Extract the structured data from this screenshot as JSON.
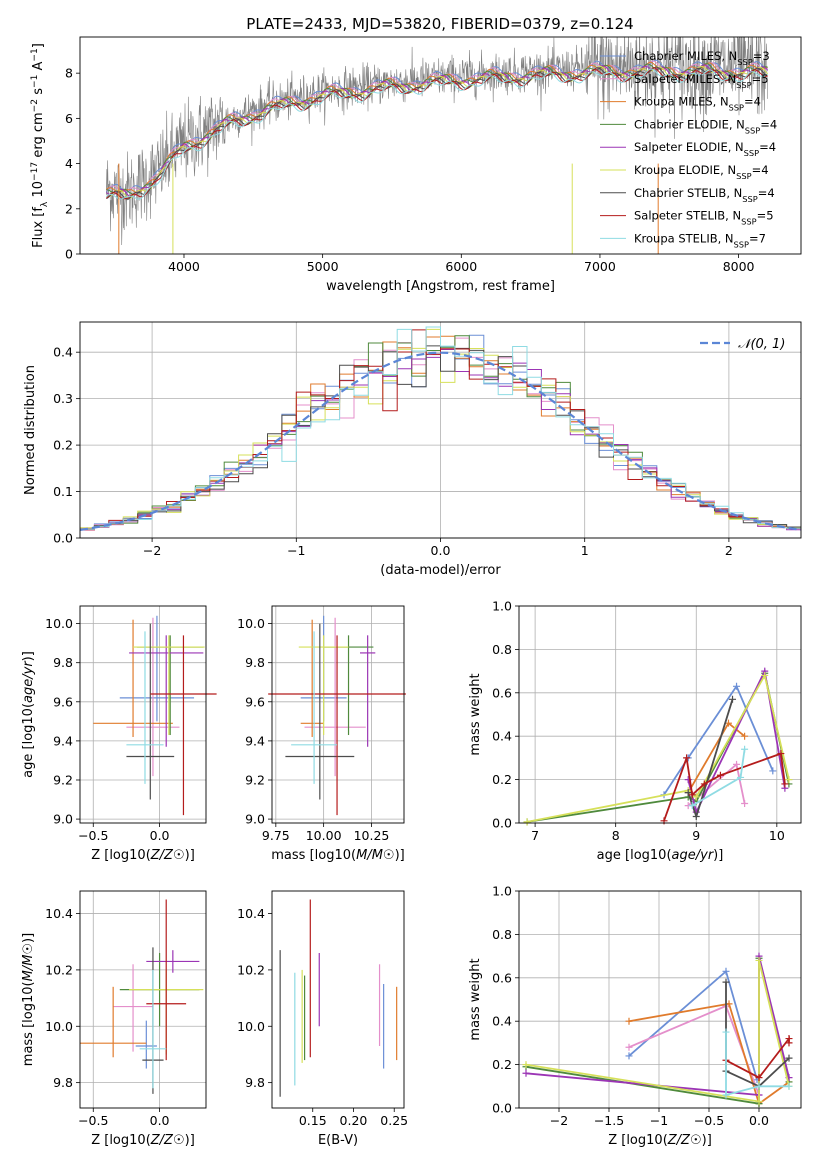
{
  "figure": {
    "title": "PLATE=2433, MJD=53820, FIBERID=0379, z=0.124"
  },
  "series_styles": [
    {
      "name": "Chabrier MILES",
      "nssp": "3",
      "color": "#6b8fd6"
    },
    {
      "name": "Salpeter MILES",
      "nssp": "5",
      "color": "#e48fcb"
    },
    {
      "name": "Kroupa MILES",
      "nssp": "4",
      "color": "#e07b2c"
    },
    {
      "name": "Chabrier ELODIE",
      "nssp": "4",
      "color": "#4f8a3c"
    },
    {
      "name": "Salpeter ELODIE",
      "nssp": "4",
      "color": "#9b35b5"
    },
    {
      "name": "Kroupa ELODIE",
      "nssp": "4",
      "color": "#d6e05a"
    },
    {
      "name": "Chabrier STELIB",
      "nssp": "4",
      "color": "#4d4d4d"
    },
    {
      "name": "Salpeter STELIB",
      "nssp": "5",
      "color": "#b41c1c"
    },
    {
      "name": "Kroupa STELIB",
      "nssp": "7",
      "color": "#8fdbe3"
    }
  ],
  "chart_data": [
    {
      "id": "spectrum",
      "type": "line",
      "xlabel": "wavelength [Angstrom, rest frame]",
      "ylabel": "Flux [f_λ 10^-17 erg cm^-2 s^-1 A^-1]",
      "xlim": [
        3250,
        8450
      ],
      "ylim": [
        0,
        9.6
      ],
      "xticks": [
        4000,
        5000,
        6000,
        7000,
        8000
      ],
      "yticks": [
        0,
        2,
        4,
        6,
        8
      ],
      "grid": false,
      "legend": "top-right",
      "data_color": "#808080",
      "continuum": {
        "x": [
          3440,
          3600,
          3800,
          4000,
          4300,
          4600,
          5000,
          5500,
          6000,
          6500,
          7000,
          7500,
          8000,
          8200
        ],
        "y": [
          2.9,
          2.7,
          3.6,
          4.9,
          5.9,
          6.6,
          7.2,
          7.6,
          7.9,
          8.1,
          8.25,
          8.3,
          8.25,
          8.2
        ]
      }
    },
    {
      "id": "residuals",
      "type": "bar",
      "xlabel": "(data-model)/error",
      "ylabel": "Normed distribution",
      "xlim": [
        -2.5,
        2.5
      ],
      "ylim": [
        0,
        0.465
      ],
      "xticks": [
        -2,
        -1,
        0,
        1,
        2
      ],
      "yticks": [
        0.0,
        0.1,
        0.2,
        0.3,
        0.4
      ],
      "grid": true,
      "legend": "top-right",
      "bin_width": 0.1,
      "gaussian_label": "𝒩(0, 1)",
      "gaussian_color": "#5b86d6"
    },
    {
      "id": "age-vs-Z",
      "type": "scatter",
      "xlabel": "Z [log10(Z/Z☉)]",
      "ylabel": "age  [log10(age/yr)]",
      "xlim": [
        -0.6,
        0.35
      ],
      "ylim": [
        8.98,
        10.09
      ],
      "xticks": [
        -0.5,
        0.0
      ],
      "yticks": [
        9.0,
        9.2,
        9.4,
        9.6,
        9.8,
        10.0
      ],
      "grid": true,
      "points": [
        {
          "x": -0.02,
          "xerr": 0.28,
          "y": 9.62,
          "yerr": [
            0.12,
            0.42
          ]
        },
        {
          "x": -0.05,
          "xerr": 0.2,
          "y": 9.47,
          "yerr": [
            0.25,
            0.56
          ]
        },
        {
          "x": -0.2,
          "xerr": 0.3,
          "y": 9.49,
          "yerr": [
            0.07,
            0.53
          ]
        },
        {
          "x": 0.08,
          "xerr": 0.25,
          "y": 9.88,
          "yerr": [
            0.45,
            0.06
          ]
        },
        {
          "x": 0.05,
          "xerr": 0.28,
          "y": 9.85,
          "yerr": [
            0.48,
            0.09
          ]
        },
        {
          "x": 0.07,
          "xerr": 0.27,
          "y": 9.88,
          "yerr": [
            0.45,
            0.06
          ]
        },
        {
          "x": -0.07,
          "xerr": 0.18,
          "y": 9.32,
          "yerr": [
            0.22,
            0.68
          ]
        },
        {
          "x": 0.18,
          "xerr": 0.25,
          "y": 9.64,
          "yerr": [
            0.62,
            0.3
          ]
        },
        {
          "x": -0.11,
          "xerr": 0.14,
          "y": 9.38,
          "yerr": [
            0.2,
            0.58
          ]
        }
      ]
    },
    {
      "id": "age-vs-mass",
      "type": "scatter",
      "xlabel": "mass [log10(M/M☉)]",
      "ylabel": "",
      "xlim": [
        9.73,
        10.42
      ],
      "ylim": [
        8.98,
        10.09
      ],
      "xticks": [
        9.75,
        9.9999,
        10.25
      ],
      "xtick_labels": [
        "9.75",
        "10.00",
        "10.25"
      ],
      "yticks": [
        9.0,
        9.2,
        9.4,
        9.6,
        9.8,
        10.0
      ],
      "grid": true,
      "points": [
        {
          "x": 10.0,
          "xerr": 0.12,
          "y": 9.62,
          "yerr": [
            0.12,
            0.42
          ]
        },
        {
          "x": 10.06,
          "xerr": 0.16,
          "y": 9.47,
          "yerr": [
            0.25,
            0.56
          ]
        },
        {
          "x": 9.94,
          "xerr": 0.06,
          "y": 9.49,
          "yerr": [
            0.07,
            0.53
          ]
        },
        {
          "x": 10.13,
          "xerr": 0.13,
          "y": 9.88,
          "yerr": [
            0.45,
            0.06
          ]
        },
        {
          "x": 10.23,
          "xerr": 0.04,
          "y": 9.85,
          "yerr": [
            0.48,
            0.09
          ]
        },
        {
          "x": 10.0,
          "xerr": 0.13,
          "y": 9.88,
          "yerr": [
            0.45,
            0.06
          ]
        },
        {
          "x": 9.98,
          "xerr": 0.18,
          "y": 9.32,
          "yerr": [
            0.22,
            0.68
          ]
        },
        {
          "x": 10.07,
          "xerr": 0.36,
          "y": 9.64,
          "yerr": [
            0.62,
            0.3
          ]
        },
        {
          "x": 9.95,
          "xerr": 0.12,
          "y": 9.38,
          "yerr": [
            0.2,
            0.58
          ]
        }
      ]
    },
    {
      "id": "massweight-vs-age",
      "type": "line",
      "xlabel": "age  [log10(age/yr)]",
      "ylabel": "mass weight",
      "xlim": [
        6.8,
        10.3
      ],
      "ylim": [
        0,
        1.0
      ],
      "xticks": [
        7,
        8,
        9,
        10
      ],
      "yticks": [
        0.0,
        0.2,
        0.4,
        0.6,
        0.8,
        1.0
      ],
      "grid": true,
      "lines": [
        {
          "x": [
            8.6,
            8.9,
            9.5,
            9.95
          ],
          "y": [
            0.13,
            0.3,
            0.63,
            0.24
          ]
        },
        {
          "x": [
            8.9,
            9.5,
            9.6
          ],
          "y": [
            0.08,
            0.27,
            0.09
          ]
        },
        {
          "x": [
            8.9,
            9.4,
            9.6
          ],
          "y": [
            0.14,
            0.46,
            0.4
          ]
        },
        {
          "x": [
            6.9,
            8.9,
            9.0,
            9.85,
            10.15
          ],
          "y": [
            0.005,
            0.12,
            0.1,
            0.69,
            0.18
          ]
        },
        {
          "x": [
            8.9,
            9.0,
            9.85,
            10.1
          ],
          "y": [
            0.2,
            0.05,
            0.7,
            0.16
          ]
        },
        {
          "x": [
            6.9,
            8.9,
            9.0,
            9.85,
            10.15
          ],
          "y": [
            0.005,
            0.15,
            0.12,
            0.68,
            0.2
          ]
        },
        {
          "x": [
            8.9,
            9.0,
            9.45
          ],
          "y": [
            0.14,
            0.03,
            0.57
          ]
        },
        {
          "x": [
            8.6,
            8.88,
            8.95,
            9.1,
            9.3,
            10.05,
            10.1
          ],
          "y": [
            0.01,
            0.3,
            0.13,
            0.18,
            0.22,
            0.32,
            0.18
          ]
        },
        {
          "x": [
            8.95,
            9.55,
            9.6
          ],
          "y": [
            0.08,
            0.21,
            0.34
          ]
        }
      ]
    },
    {
      "id": "mass-vs-Z",
      "type": "scatter",
      "xlabel": "Z [log10(Z/Z☉)]",
      "ylabel": "mass [log10(M/M☉)]",
      "xlim": [
        -0.6,
        0.35
      ],
      "ylim": [
        9.71,
        10.48
      ],
      "xticks": [
        -0.5,
        0.0
      ],
      "yticks": [
        9.8,
        10.0,
        10.2,
        10.4
      ],
      "grid": true,
      "points": [
        {
          "x": -0.1,
          "xerr": 0.08,
          "y": 9.93,
          "yerr": [
            0.08,
            0.09
          ]
        },
        {
          "x": -0.2,
          "xerr": 0.15,
          "y": 10.07,
          "yerr": [
            0.16,
            0.15
          ]
        },
        {
          "x": -0.35,
          "xerr": 0.25,
          "y": 9.94,
          "yerr": [
            0.05,
            0.2
          ]
        },
        {
          "x": 0.0,
          "xerr": 0.3,
          "y": 10.13,
          "yerr": [
            0.13,
            0.13
          ]
        },
        {
          "x": 0.1,
          "xerr": 0.2,
          "y": 10.23,
          "yerr": [
            0.04,
            0.04
          ]
        },
        {
          "x": 0.05,
          "xerr": 0.28,
          "y": 10.13,
          "yerr": [
            0.23,
            0.07
          ]
        },
        {
          "x": -0.05,
          "xerr": 0.08,
          "y": 9.88,
          "yerr": [
            0.12,
            0.4
          ]
        },
        {
          "x": 0.05,
          "xerr": 0.15,
          "y": 10.08,
          "yerr": [
            0.2,
            0.37
          ]
        },
        {
          "x": -0.05,
          "xerr": 0.1,
          "y": 9.92,
          "yerr": [
            0.14,
            0.28
          ]
        }
      ]
    },
    {
      "id": "mass-vs-EBV",
      "type": "scatter",
      "xlabel": "E(B-V)",
      "ylabel": "",
      "xlim": [
        0.1,
        0.262
      ],
      "ylim": [
        9.71,
        10.48
      ],
      "xticks": [
        0.15,
        0.2,
        0.25
      ],
      "yticks": [
        9.8,
        10.0,
        10.2,
        10.4
      ],
      "grid": false,
      "points": [
        {
          "x": 0.237,
          "y": 10.0,
          "yerr": [
            0.15,
            0.15
          ]
        },
        {
          "x": 0.232,
          "y": 10.07,
          "yerr": [
            0.14,
            0.15
          ]
        },
        {
          "x": 0.253,
          "y": 10.01,
          "yerr": [
            0.13,
            0.13
          ]
        },
        {
          "x": 0.14,
          "y": 10.03,
          "yerr": [
            0.15,
            0.15
          ]
        },
        {
          "x": 0.158,
          "y": 10.13,
          "yerr": [
            0.13,
            0.13
          ]
        },
        {
          "x": 0.137,
          "y": 10.03,
          "yerr": [
            0.16,
            0.17
          ]
        },
        {
          "x": 0.11,
          "y": 10.01,
          "yerr": [
            0.26,
            0.26
          ]
        },
        {
          "x": 0.147,
          "y": 10.17,
          "yerr": [
            0.28,
            0.28
          ]
        },
        {
          "x": 0.128,
          "y": 9.99,
          "yerr": [
            0.2,
            0.2
          ]
        }
      ]
    },
    {
      "id": "massweight-vs-Z",
      "type": "line",
      "xlabel": "Z [log10(Z/Z☉)]",
      "ylabel": "mass weight",
      "xlim": [
        -2.4,
        0.42
      ],
      "ylim": [
        0,
        1.0
      ],
      "xticks": [
        -2.0,
        -1.5,
        -1.0,
        -0.5,
        0.0
      ],
      "yticks": [
        0.0,
        0.2,
        0.4,
        0.6,
        0.8,
        1.0
      ],
      "grid": true,
      "lines": [
        {
          "x": [
            -1.3,
            -0.33,
            -0.02
          ],
          "y": [
            0.24,
            0.63,
            0.13
          ]
        },
        {
          "x": [
            -1.3,
            -0.33,
            0.0
          ],
          "y": [
            0.28,
            0.47,
            0.06
          ]
        },
        {
          "x": [
            -1.3,
            -0.3,
            0.0,
            0.3
          ],
          "y": [
            0.4,
            0.48,
            0.02,
            0.12
          ]
        },
        {
          "x": [
            -2.33,
            0.0,
            0.0,
            0.3
          ],
          "y": [
            0.19,
            0.02,
            0.69,
            0.12
          ]
        },
        {
          "x": [
            -2.33,
            0.0,
            0.0,
            0.3
          ],
          "y": [
            0.16,
            0.06,
            0.7,
            0.14
          ]
        },
        {
          "x": [
            -2.33,
            0.0,
            0.0,
            0.3
          ],
          "y": [
            0.2,
            0.03,
            0.68,
            0.1
          ]
        },
        {
          "x": [
            -0.33,
            -0.33,
            0.0,
            0.3
          ],
          "y": [
            0.58,
            0.17,
            0.1,
            0.23
          ]
        },
        {
          "x": [
            -0.33,
            0.0,
            0.3,
            0.3
          ],
          "y": [
            0.22,
            0.14,
            0.32,
            0.3
          ]
        },
        {
          "x": [
            -0.33,
            -0.33,
            0.0,
            0.3
          ],
          "y": [
            0.35,
            0.06,
            0.1,
            0.1
          ]
        }
      ]
    }
  ]
}
